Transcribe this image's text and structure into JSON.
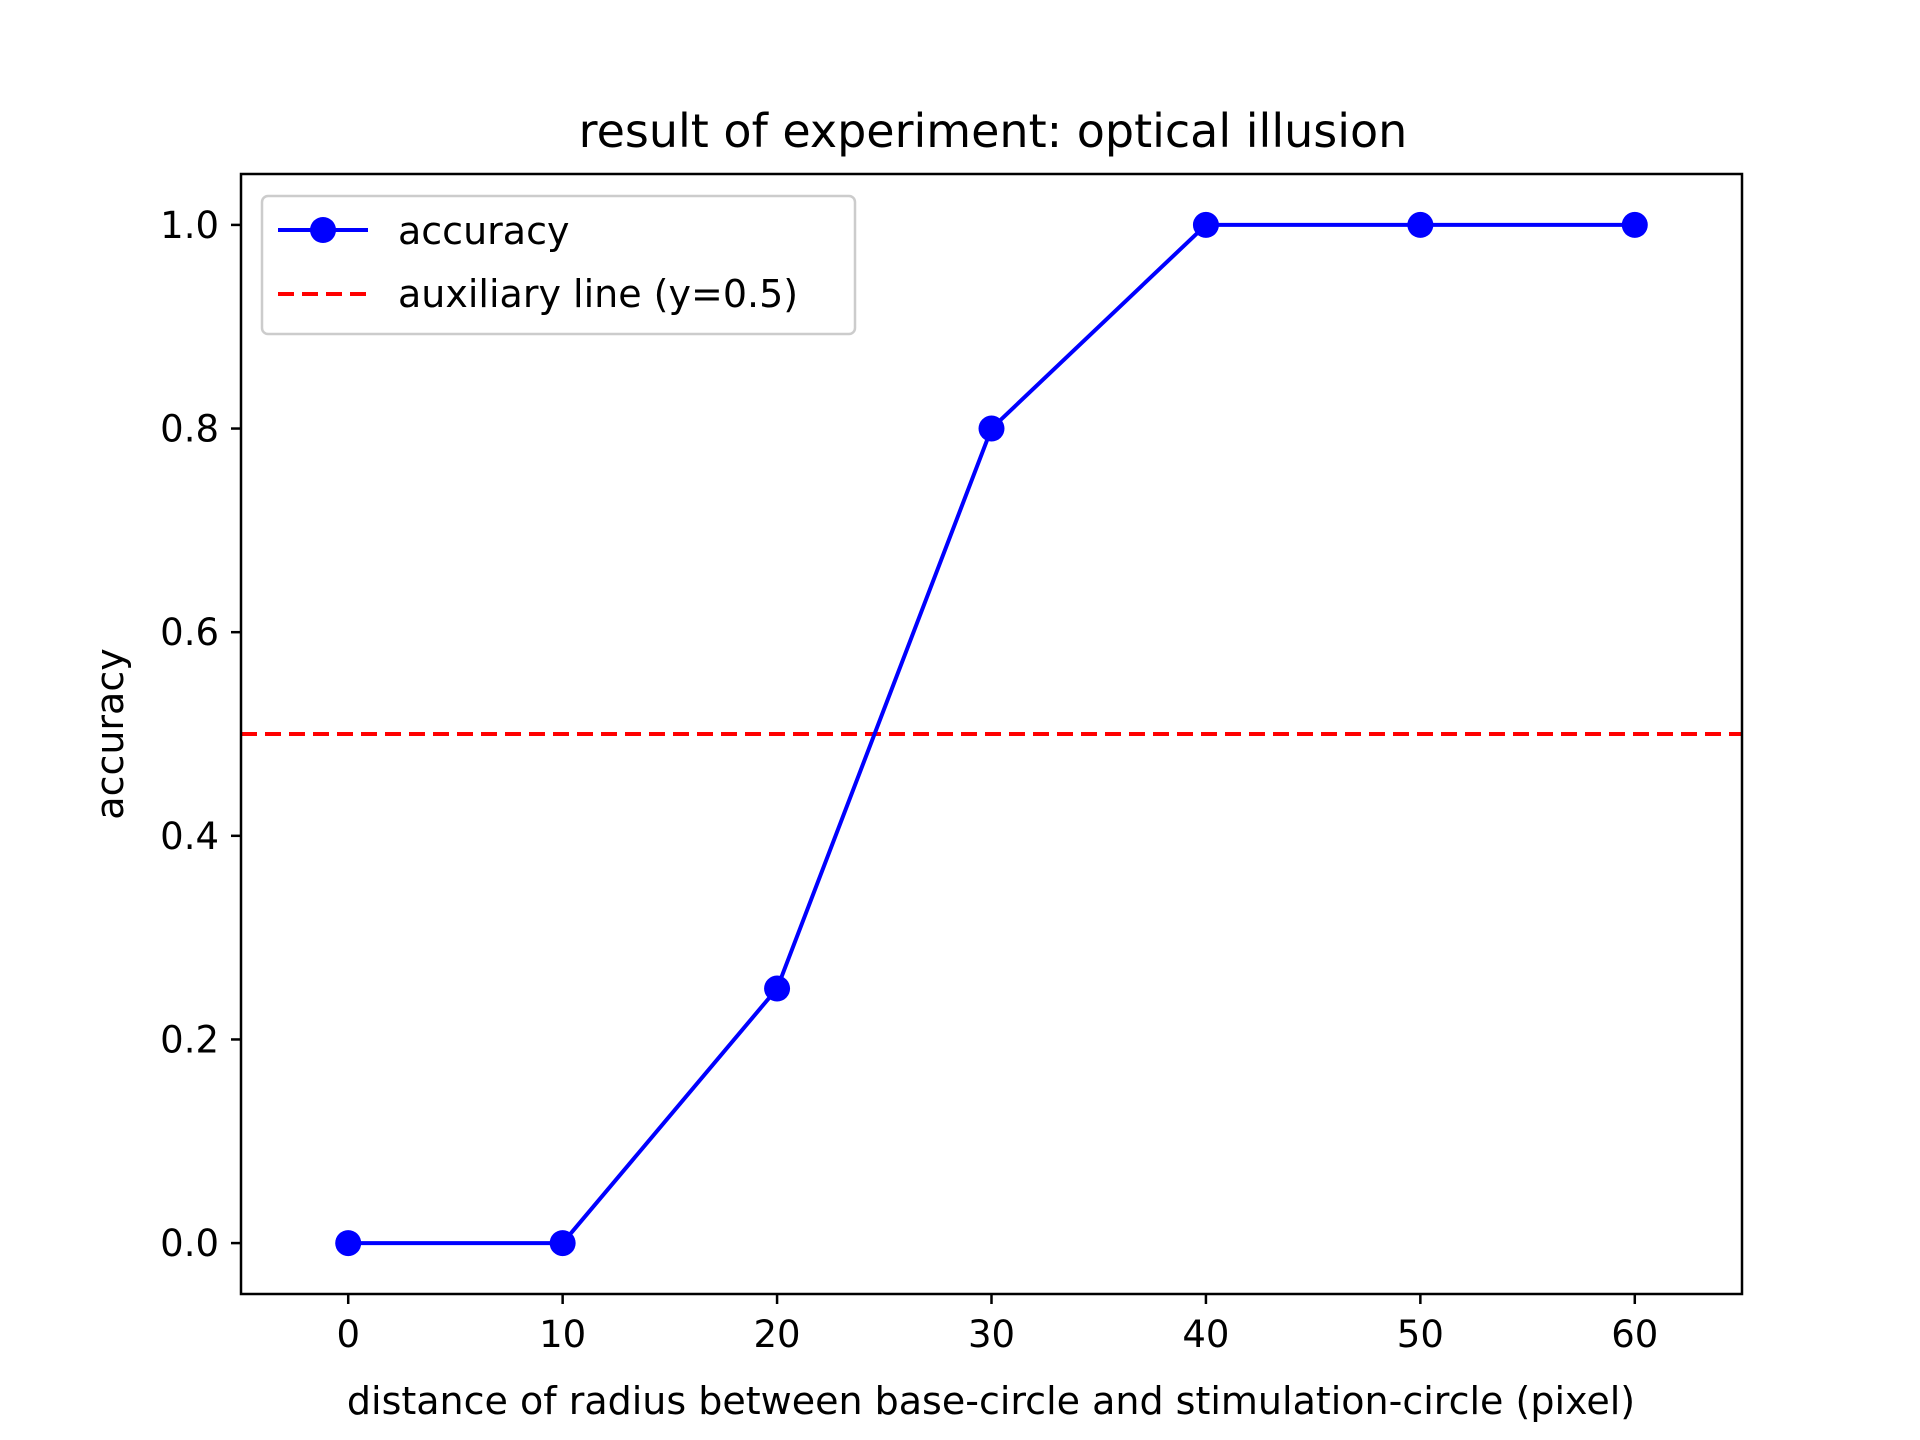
{
  "chart_data": {
    "type": "line",
    "title": "result of experiment: optical illusion",
    "xlabel": "distance of radius between base-circle and stimulation-circle (pixel)",
    "ylabel": "accuracy",
    "xlim": [
      -5,
      65
    ],
    "ylim": [
      -0.05,
      1.05
    ],
    "x_ticks": [
      "0",
      "10",
      "20",
      "30",
      "40",
      "50",
      "60"
    ],
    "y_ticks": [
      "0.0",
      "0.2",
      "0.4",
      "0.6",
      "0.8",
      "1.0"
    ],
    "grid": false,
    "legend_position": "upper-left",
    "series": [
      {
        "name": "accuracy",
        "color": "#0000ff",
        "style": "solid",
        "marker": "circle",
        "x": [
          0,
          10,
          20,
          30,
          40,
          50,
          60
        ],
        "y": [
          0.0,
          0.0,
          0.25,
          0.8,
          1.0,
          1.0,
          1.0
        ]
      }
    ],
    "reference_lines": [
      {
        "name": "auxiliary line (y=0.5)",
        "orientation": "horizontal",
        "y": 0.5,
        "color": "#ff0000",
        "style": "dashed"
      }
    ]
  }
}
